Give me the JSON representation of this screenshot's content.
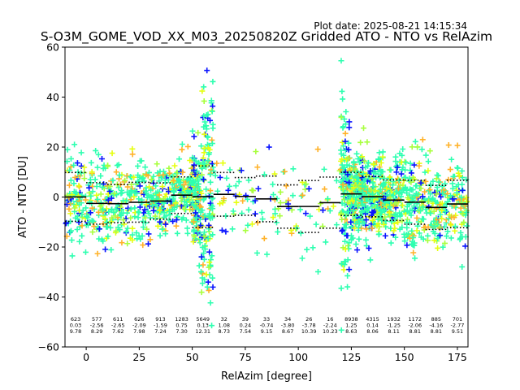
{
  "plot_date": "Plot date: 2025-08-21 14:15:34",
  "chart_data": {
    "type": "scatter",
    "title": "S-O3M_GOME_VOD_XX_M03_20250820Z Gridded ATO - NTO vs RelAzim",
    "xlabel": "RelAzim [degree]",
    "ylabel": "ATO - NTO [DU]",
    "xlim": [
      -10,
      180
    ],
    "ylim": [
      -60,
      60
    ],
    "x_ticks": [
      0,
      25,
      50,
      75,
      100,
      125,
      150,
      175
    ],
    "y_ticks": [
      -60,
      -40,
      -20,
      0,
      20,
      40,
      60
    ],
    "grid": false,
    "colors": {
      "cyan_green": "#2effb0",
      "yellow": "#e6ff10",
      "lime": "#a8ff3e",
      "orange": "#ffb22a",
      "blue": "#0a14ff",
      "mean_line": "#000000"
    },
    "bins": [
      {
        "x_start": -10,
        "x_end": 0,
        "count": "623",
        "mean": "0.03",
        "std": "9.78"
      },
      {
        "x_start": 0,
        "x_end": 10,
        "count": "577",
        "mean": "-2.56",
        "std": "8.29"
      },
      {
        "x_start": 10,
        "x_end": 20,
        "count": "611",
        "mean": "-2.65",
        "std": "7.62"
      },
      {
        "x_start": 20,
        "x_end": 30,
        "count": "626",
        "mean": "-2.09",
        "std": "7.98"
      },
      {
        "x_start": 30,
        "x_end": 40,
        "count": "913",
        "mean": "-1.59",
        "std": "7.24"
      },
      {
        "x_start": 40,
        "x_end": 50,
        "count": "1283",
        "mean": "0.75",
        "std": "7.30"
      },
      {
        "x_start": 50,
        "x_end": 60,
        "count": "5649",
        "mean": "0.13",
        "std": "12.31"
      },
      {
        "x_start": 60,
        "x_end": 70,
        "count": "32",
        "mean": "1.08",
        "std": "8.73"
      },
      {
        "x_start": 70,
        "x_end": 80,
        "count": "39",
        "mean": "0.24",
        "std": "7.54"
      },
      {
        "x_start": 80,
        "x_end": 90,
        "count": "33",
        "mean": "-0.74",
        "std": "9.15"
      },
      {
        "x_start": 90,
        "x_end": 100,
        "count": "34",
        "mean": "-3.80",
        "std": "8.67"
      },
      {
        "x_start": 100,
        "x_end": 110,
        "count": "26",
        "mean": "-3.78",
        "std": "10.39"
      },
      {
        "x_start": 110,
        "x_end": 120,
        "count": "16",
        "mean": "-2.24",
        "std": "10.23"
      },
      {
        "x_start": 120,
        "x_end": 130,
        "count": "8938",
        "mean": "1.25",
        "std": "8.63"
      },
      {
        "x_start": 130,
        "x_end": 140,
        "count": "4315",
        "mean": "0.14",
        "std": "8.06"
      },
      {
        "x_start": 140,
        "x_end": 150,
        "count": "1932",
        "mean": "-1.25",
        "std": "8.11"
      },
      {
        "x_start": 150,
        "x_end": 160,
        "count": "1172",
        "mean": "-2.06",
        "std": "8.81"
      },
      {
        "x_start": 160,
        "x_end": 170,
        "count": "885",
        "mean": "-4.16",
        "std": "8.81"
      },
      {
        "x_start": 170,
        "x_end": 180,
        "count": "701",
        "mean": "-2.77",
        "std": "9.51"
      }
    ]
  }
}
